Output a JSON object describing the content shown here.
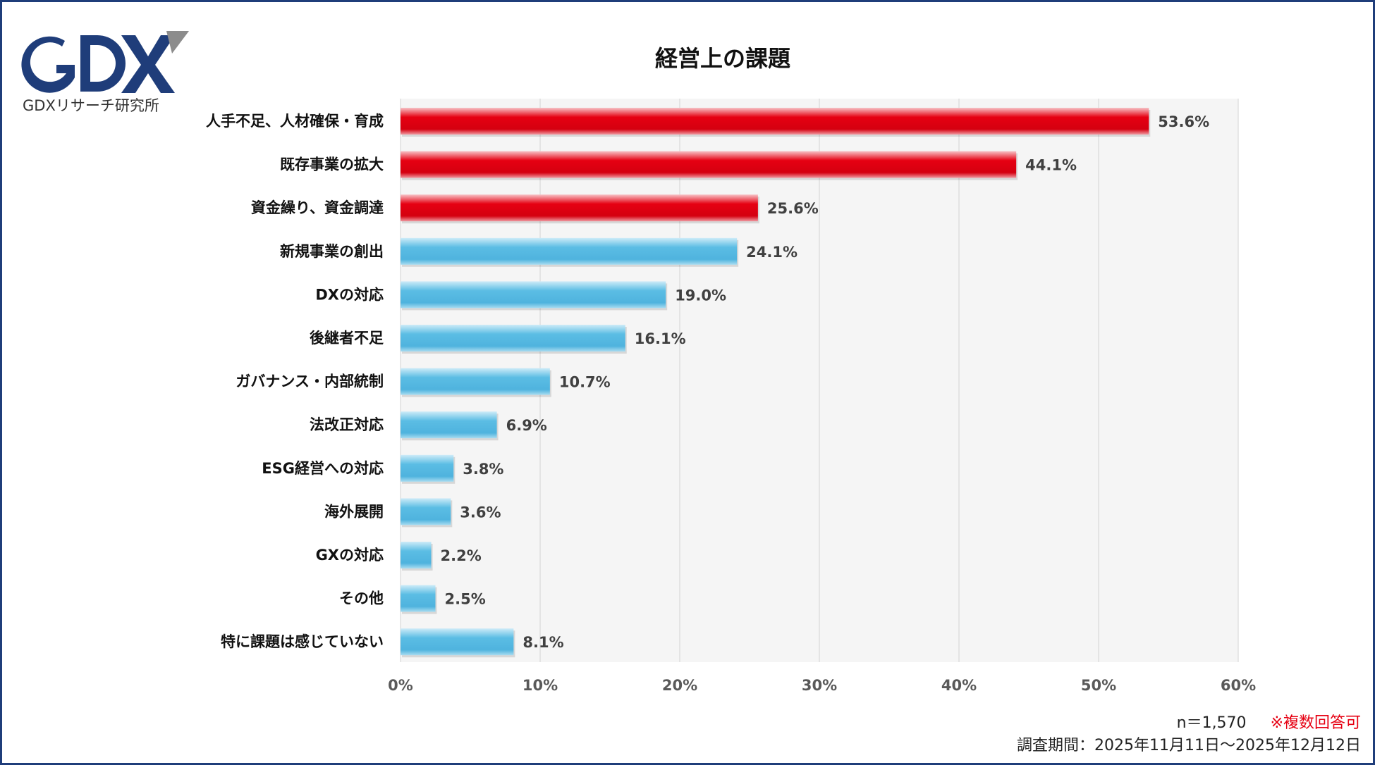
{
  "brand": {
    "logo_text": "GDX",
    "caption": "GDXリサーチ研究所",
    "logo_color": "#1f3d7a",
    "logo_accent_color": "#8c8c8c"
  },
  "notes": {
    "sample_size": "n＝1,570",
    "multiple_answers": "※複数回答可",
    "survey_period": "調査期間：2025年11月11日～2025年12月12日"
  },
  "chart_data": {
    "type": "bar",
    "orientation": "horizontal",
    "title": "経営上の課題",
    "categories": [
      "人手不足、人材確保・育成",
      "既存事業の拡大",
      "資金繰り、資金調達",
      "新規事業の創出",
      "DXの対応",
      "後継者不足",
      "ガバナンス・内部統制",
      "法改正対応",
      "ESG経営への対応",
      "海外展開",
      "GXの対応",
      "その他",
      "特に課題は感じていない"
    ],
    "values": [
      53.6,
      44.1,
      25.6,
      24.1,
      19.0,
      16.1,
      10.7,
      6.9,
      3.8,
      3.6,
      2.2,
      2.5,
      8.1
    ],
    "value_labels": [
      "53.6%",
      "44.1%",
      "25.6%",
      "24.1%",
      "19.0%",
      "16.1%",
      "10.7%",
      "6.9%",
      "3.8%",
      "3.6%",
      "2.2%",
      "2.5%",
      "8.1%"
    ],
    "highlight_count": 3,
    "colors": {
      "highlight": "#e60012",
      "normal": "#5bbde4",
      "plot_background": "#f5f5f5",
      "grid": "#d9d9d9"
    },
    "xlim": [
      0,
      60
    ],
    "xticks": [
      0,
      10,
      20,
      30,
      40,
      50,
      60
    ],
    "xtick_labels": [
      "0%",
      "10%",
      "20%",
      "30%",
      "40%",
      "50%",
      "60%"
    ],
    "grid": true,
    "legend": "none"
  }
}
